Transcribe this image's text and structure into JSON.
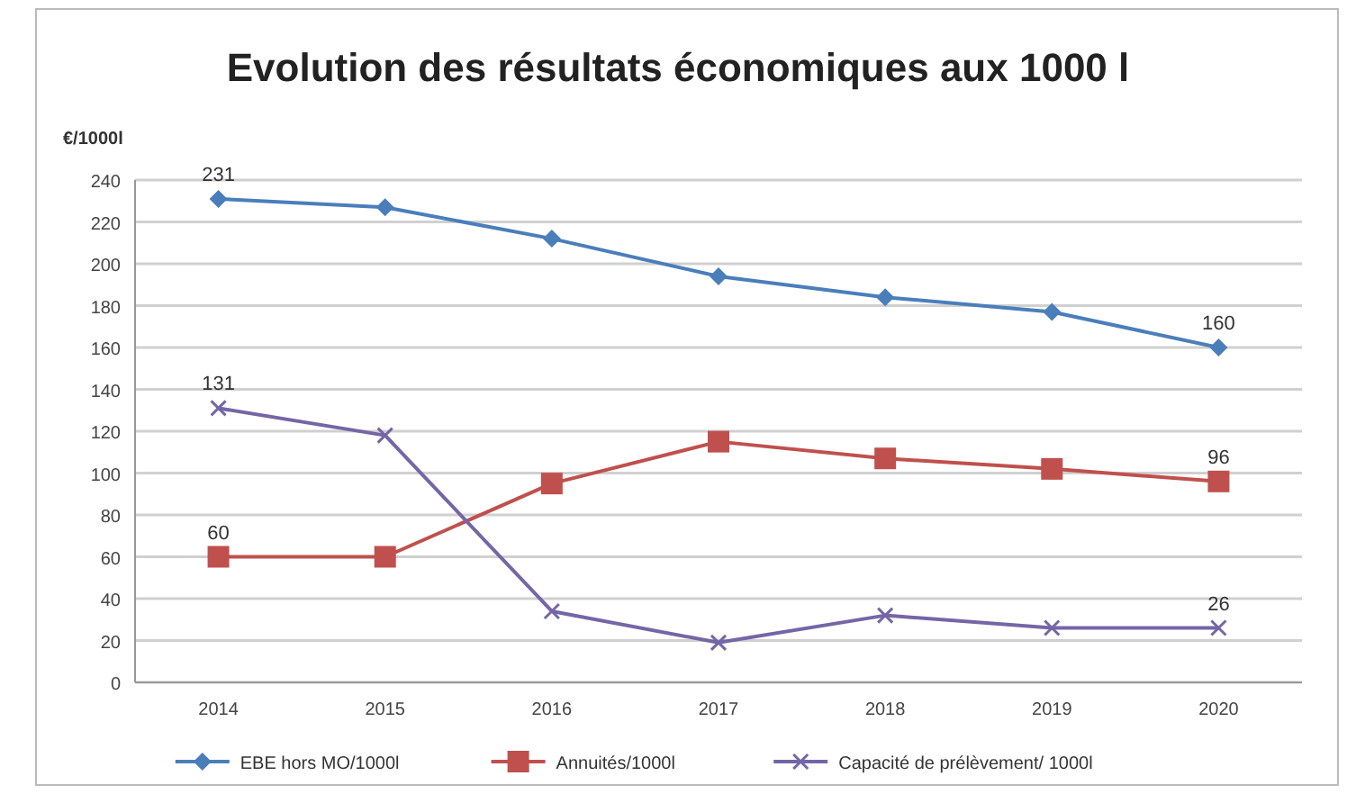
{
  "chart_data": {
    "type": "line",
    "title": "Evolution des résultats économiques aux 1000 l",
    "ylabel": "€/1000l",
    "categories": [
      "2014",
      "2015",
      "2016",
      "2017",
      "2018",
      "2019",
      "2020"
    ],
    "series": [
      {
        "name": "EBE hors MO/1000l",
        "color": "#4a7ebb",
        "marker": "diamond",
        "values": [
          231,
          227,
          212,
          194,
          184,
          177,
          160
        ],
        "value_labels": [
          "231",
          null,
          null,
          null,
          null,
          null,
          "160"
        ]
      },
      {
        "name": "Annuités/1000l",
        "color": "#c0504d",
        "marker": "square",
        "values": [
          60,
          60,
          95,
          115,
          107,
          102,
          96
        ],
        "value_labels": [
          "60",
          null,
          null,
          null,
          null,
          null,
          "96"
        ]
      },
      {
        "name": "Capacité de prélèvement/ 1000l",
        "color": "#7466a6",
        "marker": "cross",
        "values": [
          131,
          118,
          34,
          19,
          32,
          26,
          26
        ],
        "value_labels": [
          "131",
          null,
          null,
          null,
          null,
          null,
          "26"
        ]
      }
    ],
    "ylim": [
      0,
      240
    ],
    "yticks": [
      0,
      20,
      40,
      60,
      80,
      100,
      120,
      140,
      160,
      180,
      200,
      220,
      240
    ],
    "grid": "y",
    "legend": "bottom",
    "line_style": "solid"
  }
}
